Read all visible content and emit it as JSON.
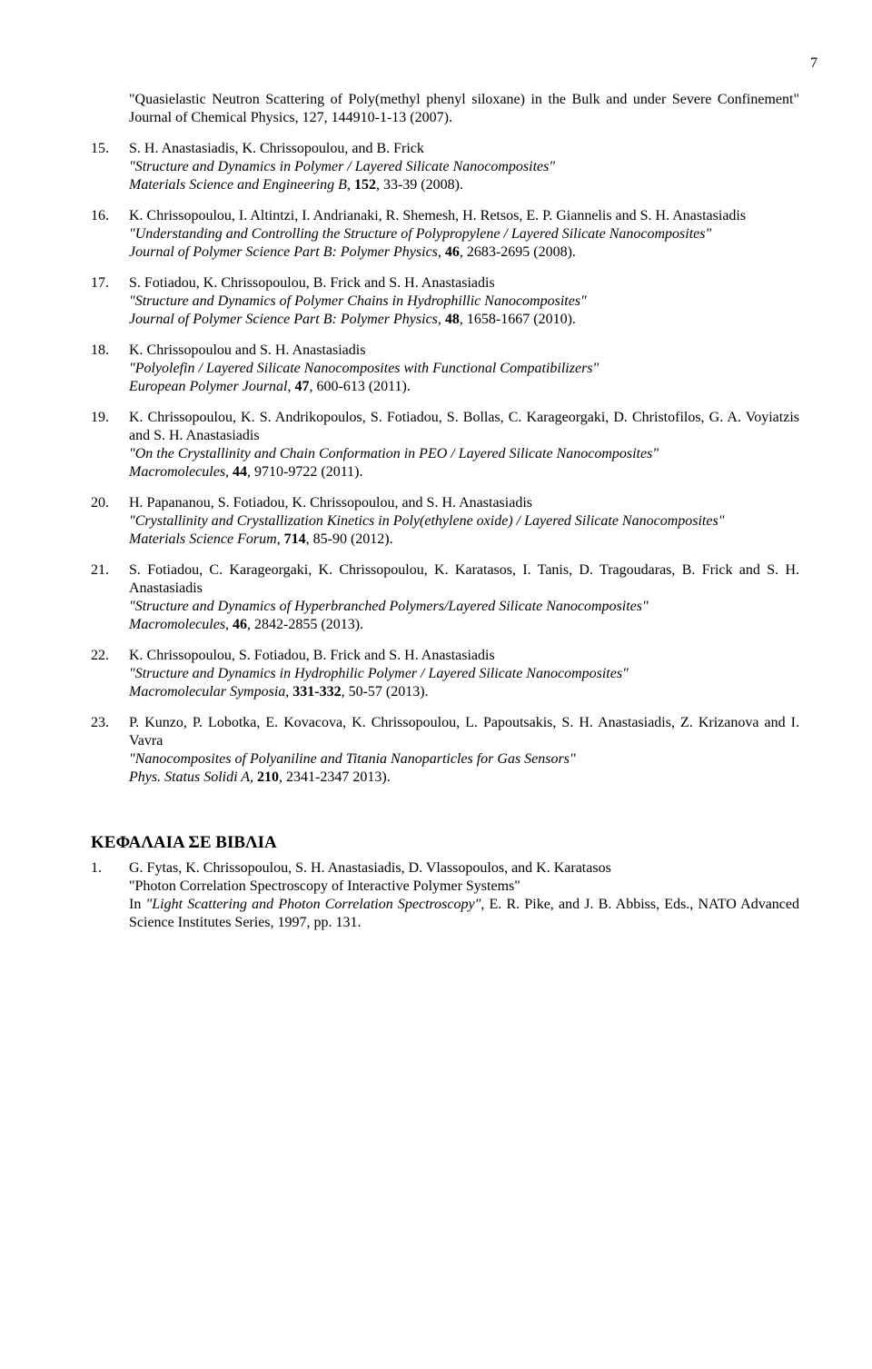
{
  "page_number": "7",
  "continuation": {
    "title": "\"Quasielastic Neutron Scattering of Poly(methyl phenyl siloxane) in the Bulk and under Severe Confinement\"",
    "journal_name": "Journal of Chemical Physics, ",
    "journal_vol": "127",
    "journal_rest": ", 144910-1-13 (2007)."
  },
  "refs": [
    {
      "num": "15.",
      "authors": "S. H. Anastasiadis, K. Chrissopoulou, and B. Frick",
      "title": "\"Structure and Dynamics in Polymer / Layered Silicate Nanocomposites\"",
      "journal_name": "Materials Science and Engineering B, ",
      "journal_vol": "152",
      "journal_rest": ", 33-39 (2008)."
    },
    {
      "num": "16.",
      "authors": "K. Chrissopoulou, I. Altintzi, I. Andrianaki, R. Shemesh, H. Retsos, E. P. Giannelis and S. H. Anastasiadis",
      "title": "\"Understanding and Controlling the Structure of Polypropylene / Layered Silicate Nanocomposites\"",
      "journal_name": "Journal of Polymer Science Part B: Polymer Physics, ",
      "journal_vol": "46",
      "journal_rest": ", 2683-2695 (2008)."
    },
    {
      "num": "17.",
      "authors": "S. Fotiadou, K. Chrissopoulou, B. Frick and S. H. Anastasiadis",
      "title": "\"Structure and Dynamics of Polymer Chains in Hydrophillic Nanocomposites\"",
      "journal_name": "Journal of Polymer Science Part B: Polymer Physics, ",
      "journal_vol": "48",
      "journal_rest": ", 1658-1667 (2010)."
    },
    {
      "num": "18.",
      "authors": "K. Chrissopoulou and S. H. Anastasiadis",
      "title": "\"Polyolefin / Layered Silicate Nanocomposites with Functional Compatibilizers\"",
      "journal_name": "European Polymer Journal",
      "journal_vol": "47",
      "journal_rest": ", 600-613 (2011).",
      "journal_sep": ", "
    },
    {
      "num": "19.",
      "authors": "K. Chrissopoulou, K. S. Andrikopoulos, S. Fotiadou, S. Bollas, C. Karageorgaki, D. Christofilos, G. A. Voyiatzis and S. H. Anastasiadis",
      "title": "\"On the Crystallinity and Chain Conformation in PEO / Layered Silicate Nanocomposites\"",
      "journal_name": "Macromolecules, ",
      "journal_vol": "44",
      "journal_rest": ", 9710-9722 (2011)."
    },
    {
      "num": "20.",
      "authors": "H. Papananou, S. Fotiadou, K. Chrissopoulou, and S. H. Anastasiadis",
      "title": "\"Crystallinity and Crystallization Kinetics in Poly(ethylene oxide) / Layered Silicate Nanocomposites\"",
      "journal_name": "Materials Science Forum, ",
      "journal_vol": "714",
      "journal_rest": ", 85-90 (2012)."
    },
    {
      "num": "21.",
      "authors": "S. Fotiadou, C. Karageorgaki, K. Chrissopoulou, K. Karatasos, I. Tanis, D. Tragoudaras, B. Frick and S. H. Anastasiadis",
      "title": "\"Structure and Dynamics of Hyperbranched Polymers/Layered Silicate Nanocomposites\"",
      "journal_name": "Macromolecules, ",
      "journal_vol": "46",
      "journal_rest": ", 2842-2855 (2013)."
    },
    {
      "num": "22.",
      "authors": "K. Chrissopoulou, S. Fotiadou, B. Frick and S. H. Anastasiadis",
      "title": "\"Structure and Dynamics in Hydrophilic Polymer / Layered Silicate Nanocomposites\"",
      "journal_name": "Macromolecular Symposia, ",
      "journal_vol": "331-332",
      "journal_rest": ", 50-57 (2013)."
    },
    {
      "num": "23.",
      "authors": "P. Kunzo, P. Lobotka, E. Kovacova, K. Chrissopoulou, L. Papoutsakis, S. H. Anastasiadis, Z. Krizanova and I. Vavra",
      "title": "\"Nanocomposites of Polyaniline and Titania Nanoparticles for Gas Sensors\"",
      "journal_name": "Phys. Status Solidi A, ",
      "journal_vol": "210",
      "journal_rest": ", 2341-2347 2013)."
    }
  ],
  "section_heading": "ΚΕΦΑΛΑΙΑ ΣΕ ΒΙΒΛΙΑ",
  "book_refs": [
    {
      "num": "1.",
      "authors": "G. Fytas, K. Chrissopoulou, S. H. Anastasiadis, D. Vlassopoulos, and K. Karatasos",
      "title": "\"Photon Correlation Spectroscopy of Interactive Polymer Systems\"",
      "in_prefix": "In ",
      "in_title": "\"Light Scattering and Photon Correlation Spectroscopy\"",
      "in_rest": ", E. R. Pike, and J. B. Abbiss, Eds., NATO Advanced Science Institutes Series, 1997, pp. 131."
    }
  ]
}
